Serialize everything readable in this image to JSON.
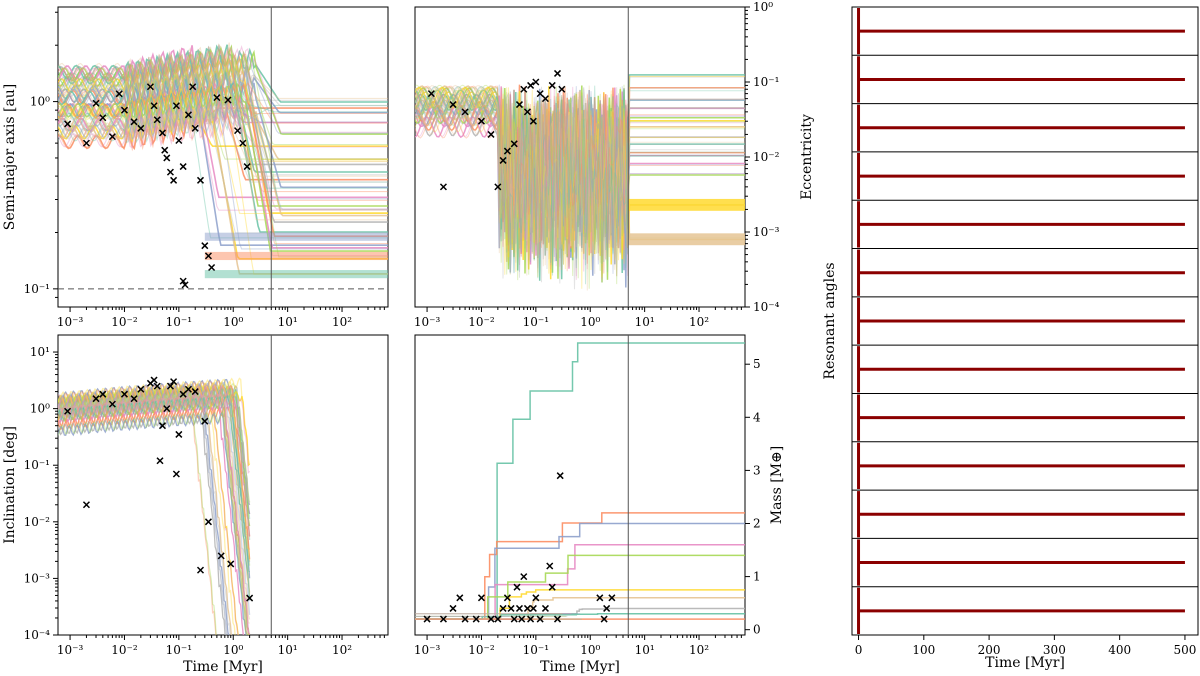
{
  "chart_data": [
    {
      "id": "semi-major-axis",
      "type": "line",
      "xscale": "log",
      "yscale": "log",
      "xlim": [
        0.0006,
        700
      ],
      "ylim": [
        0.08,
        3.2
      ],
      "ylabel": "Semi-major axis [au]",
      "xlabel": "",
      "x_ticks": [
        0.001,
        0.01,
        0.1,
        1,
        10,
        100
      ],
      "x_tick_labels": [
        "10⁻³",
        "10⁻²",
        "10⁻¹",
        "10⁰",
        "10¹",
        "10²"
      ],
      "y_ticks": [
        0.1,
        1
      ],
      "y_tick_labels": [
        "10⁻¹",
        "10⁰"
      ],
      "reference_vline_x": 5,
      "reference_hline_y": 0.1,
      "final_values": [
        1.02,
        0.95,
        0.86,
        0.76,
        0.68,
        0.59,
        0.5,
        0.47,
        0.41,
        0.38,
        0.34,
        0.3,
        0.27,
        0.26,
        0.25,
        0.23,
        0.2,
        0.19,
        0.175,
        0.165,
        0.155,
        0.145,
        0.12
      ],
      "markers": [
        [
          0.0009,
          0.76
        ],
        [
          0.002,
          0.6
        ],
        [
          0.003,
          0.98
        ],
        [
          0.004,
          0.82
        ],
        [
          0.006,
          0.65
        ],
        [
          0.008,
          1.1
        ],
        [
          0.01,
          0.9
        ],
        [
          0.015,
          0.78
        ],
        [
          0.02,
          0.72
        ],
        [
          0.03,
          1.2
        ],
        [
          0.035,
          0.95
        ],
        [
          0.04,
          0.8
        ],
        [
          0.05,
          0.68
        ],
        [
          0.055,
          0.55
        ],
        [
          0.06,
          0.5
        ],
        [
          0.07,
          0.42
        ],
        [
          0.08,
          0.38
        ],
        [
          0.1,
          0.62
        ],
        [
          0.12,
          0.45
        ],
        [
          0.15,
          0.85
        ],
        [
          0.2,
          0.72
        ],
        [
          0.25,
          0.38
        ],
        [
          0.3,
          0.17
        ],
        [
          0.35,
          0.15
        ],
        [
          0.5,
          1.05
        ],
        [
          0.8,
          1.02
        ],
        [
          1.2,
          0.7
        ],
        [
          1.5,
          0.6
        ],
        [
          1.8,
          0.45
        ],
        [
          0.12,
          0.11
        ],
        [
          0.13,
          0.105
        ],
        [
          0.4,
          0.13
        ],
        [
          0.18,
          1.2
        ],
        [
          0.09,
          0.95
        ]
      ]
    },
    {
      "id": "eccentricity",
      "type": "line",
      "xscale": "log",
      "yscale": "log",
      "xlim": [
        0.0006,
        700
      ],
      "ylim": [
        0.0001,
        1
      ],
      "ylabel": "Eccentricity",
      "xlabel": "",
      "x_ticks": [
        0.001,
        0.01,
        0.1,
        1,
        10,
        100
      ],
      "x_tick_labels": [
        "10⁻³",
        "10⁻²",
        "10⁻¹",
        "10⁰",
        "10¹",
        "10²"
      ],
      "y_ticks": [
        0.0001,
        0.001,
        0.01,
        0.1,
        1
      ],
      "y_tick_labels": [
        "10⁻⁴",
        "10⁻³",
        "10⁻²",
        "10⁻¹",
        "10⁰"
      ],
      "reference_vline_x": 5,
      "final_values": [
        0.12,
        0.08,
        0.06,
        0.045,
        0.035,
        0.03,
        0.025,
        0.018,
        0.015,
        0.012,
        0.01,
        0.008,
        0.006,
        0.0023,
        0.0008
      ],
      "markers": [
        [
          0.0012,
          0.07
        ],
        [
          0.002,
          0.004
        ],
        [
          0.003,
          0.05
        ],
        [
          0.005,
          0.04
        ],
        [
          0.01,
          0.03
        ],
        [
          0.015,
          0.02
        ],
        [
          0.02,
          0.004
        ],
        [
          0.025,
          0.009
        ],
        [
          0.03,
          0.012
        ],
        [
          0.04,
          0.015
        ],
        [
          0.05,
          0.05
        ],
        [
          0.06,
          0.08
        ],
        [
          0.08,
          0.09
        ],
        [
          0.1,
          0.1
        ],
        [
          0.12,
          0.07
        ],
        [
          0.15,
          0.06
        ],
        [
          0.2,
          0.09
        ],
        [
          0.25,
          0.13
        ],
        [
          0.3,
          0.08
        ],
        [
          0.07,
          0.04
        ],
        [
          0.09,
          0.03
        ]
      ]
    },
    {
      "id": "inclination",
      "type": "line",
      "xscale": "log",
      "yscale": "log",
      "xlim": [
        0.0006,
        700
      ],
      "ylim": [
        0.0001,
        20
      ],
      "ylabel": "Inclination [deg]",
      "xlabel": "Time [Myr]",
      "x_ticks": [
        0.001,
        0.01,
        0.1,
        1,
        10,
        100
      ],
      "x_tick_labels": [
        "10⁻³",
        "10⁻²",
        "10⁻¹",
        "10⁰",
        "10¹",
        "10²"
      ],
      "y_ticks": [
        0.0001,
        0.001,
        0.01,
        0.1,
        1,
        10
      ],
      "y_tick_labels": [
        "10⁻⁴",
        "10⁻³",
        "10⁻²",
        "10⁻¹",
        "10⁰",
        "10¹"
      ],
      "reference_vline_x": 5,
      "markers": [
        [
          0.0009,
          0.9
        ],
        [
          0.002,
          0.02
        ],
        [
          0.003,
          1.5
        ],
        [
          0.004,
          1.8
        ],
        [
          0.006,
          1.2
        ],
        [
          0.01,
          1.8
        ],
        [
          0.015,
          1.5
        ],
        [
          0.02,
          2.2
        ],
        [
          0.03,
          2.8
        ],
        [
          0.035,
          3.2
        ],
        [
          0.04,
          2.5
        ],
        [
          0.045,
          0.12
        ],
        [
          0.05,
          0.5
        ],
        [
          0.06,
          1.0
        ],
        [
          0.07,
          2.5
        ],
        [
          0.08,
          3.0
        ],
        [
          0.09,
          0.07
        ],
        [
          0.1,
          0.35
        ],
        [
          0.12,
          1.8
        ],
        [
          0.15,
          2.2
        ],
        [
          0.2,
          2.0
        ],
        [
          0.25,
          0.0014
        ],
        [
          0.3,
          0.6
        ],
        [
          0.35,
          0.01
        ],
        [
          0.6,
          0.0025
        ],
        [
          0.9,
          0.0018
        ],
        [
          2,
          0.00045
        ]
      ]
    },
    {
      "id": "mass",
      "type": "line",
      "xscale": "log",
      "yscale": "linear",
      "xlim": [
        0.0006,
        700
      ],
      "ylim": [
        -0.1,
        5.55
      ],
      "ylabel": "Mass [M⊕]",
      "xlabel": "Time [Myr]",
      "x_ticks": [
        0.001,
        0.01,
        0.1,
        1,
        10,
        100
      ],
      "x_tick_labels": [
        "10⁻³",
        "10⁻²",
        "10⁻¹",
        "10⁰",
        "10¹",
        "10²"
      ],
      "y_ticks": [
        0,
        1,
        2,
        3,
        4,
        5
      ],
      "y_tick_labels": [
        "0",
        "1",
        "2",
        "3",
        "4",
        "5"
      ],
      "reference_vline_x": 5,
      "final_values": [
        5.4,
        2.2,
        2.0,
        1.6,
        1.4,
        0.75,
        0.6,
        0.4,
        0.3,
        0.2
      ],
      "markers": [
        [
          0.001,
          0.2
        ],
        [
          0.002,
          0.2
        ],
        [
          0.003,
          0.4
        ],
        [
          0.004,
          0.6
        ],
        [
          0.005,
          0.2
        ],
        [
          0.008,
          0.2
        ],
        [
          0.01,
          0.6
        ],
        [
          0.015,
          0.2
        ],
        [
          0.02,
          0.2
        ],
        [
          0.025,
          0.4
        ],
        [
          0.03,
          0.6
        ],
        [
          0.035,
          0.4
        ],
        [
          0.04,
          0.2
        ],
        [
          0.045,
          0.8
        ],
        [
          0.05,
          0.4
        ],
        [
          0.055,
          0.2
        ],
        [
          0.06,
          1.0
        ],
        [
          0.07,
          0.4
        ],
        [
          0.08,
          0.2
        ],
        [
          0.09,
          0.4
        ],
        [
          0.1,
          0.6
        ],
        [
          0.12,
          0.2
        ],
        [
          0.15,
          0.4
        ],
        [
          0.18,
          1.2
        ],
        [
          0.2,
          0.8
        ],
        [
          0.25,
          0.2
        ],
        [
          0.28,
          2.9
        ],
        [
          1.5,
          0.6
        ],
        [
          1.8,
          0.2
        ],
        [
          2.0,
          0.4
        ],
        [
          2.5,
          0.6
        ]
      ]
    },
    {
      "id": "resonant-angles",
      "type": "line",
      "xscale": "linear",
      "xlim": [
        -10,
        520
      ],
      "ylabel": "Resonant angles",
      "xlabel": "Time [Myr]",
      "x_ticks": [
        0,
        100,
        200,
        300,
        400,
        500
      ],
      "x_tick_labels": [
        "0",
        "100",
        "200",
        "300",
        "400",
        "500"
      ],
      "panel_count": 13,
      "series_color": "#8b0000",
      "t_end": 500
    }
  ],
  "colors": {
    "markers": "#000000",
    "reference_line": "#555555",
    "palette": [
      "#66c2a5",
      "#fc8d62",
      "#8da0cb",
      "#e78ac3",
      "#a6d854",
      "#ffd92f",
      "#e5c494",
      "#b3b3b3"
    ]
  }
}
